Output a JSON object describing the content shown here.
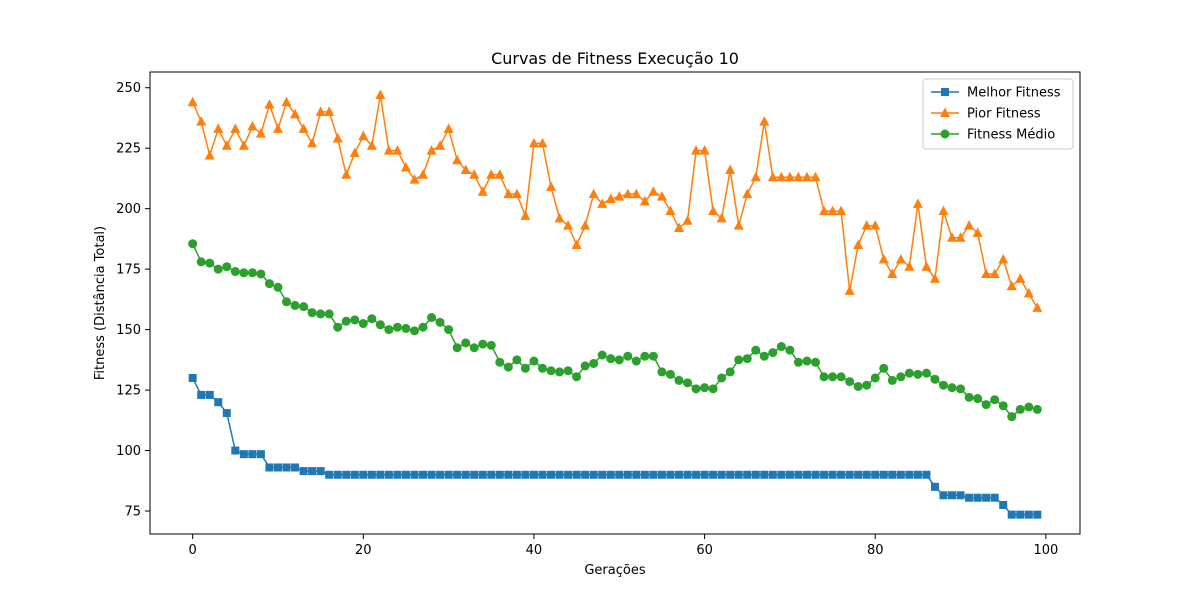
{
  "chart_data": {
    "type": "line",
    "title": "Curvas de Fitness Execução 10",
    "xlabel": "Gerações",
    "ylabel": "Fitness (Distância Total)",
    "xlim": [
      -5.0,
      104.0
    ],
    "ylim": [
      65.5,
      256.5
    ],
    "xticks": [
      0,
      20,
      40,
      60,
      80,
      100
    ],
    "yticks": [
      75,
      100,
      125,
      150,
      175,
      200,
      225,
      250
    ],
    "grid": false,
    "legend_position": "top-right",
    "x": [
      0,
      1,
      2,
      3,
      4,
      5,
      6,
      7,
      8,
      9,
      10,
      11,
      12,
      13,
      14,
      15,
      16,
      17,
      18,
      19,
      20,
      21,
      22,
      23,
      24,
      25,
      26,
      27,
      28,
      29,
      30,
      31,
      32,
      33,
      34,
      35,
      36,
      37,
      38,
      39,
      40,
      41,
      42,
      43,
      44,
      45,
      46,
      47,
      48,
      49,
      50,
      51,
      52,
      53,
      54,
      55,
      56,
      57,
      58,
      59,
      60,
      61,
      62,
      63,
      64,
      65,
      66,
      67,
      68,
      69,
      70,
      71,
      72,
      73,
      74,
      75,
      76,
      77,
      78,
      79,
      80,
      81,
      82,
      83,
      84,
      85,
      86,
      87,
      88,
      89,
      90,
      91,
      92,
      93,
      94,
      95,
      96,
      97,
      98,
      99
    ],
    "series": [
      {
        "name": "Melhor Fitness",
        "color": "#1f77b4",
        "marker": "square",
        "values": [
          130,
          123,
          123,
          120,
          115.5,
          100,
          98.5,
          98.5,
          98.5,
          93,
          93,
          93,
          93,
          91.5,
          91.5,
          91.5,
          90,
          90,
          90,
          90,
          90,
          90,
          90,
          90,
          90,
          90,
          90,
          90,
          90,
          90,
          90,
          90,
          90,
          90,
          90,
          90,
          90,
          90,
          90,
          90,
          90,
          90,
          90,
          90,
          90,
          90,
          90,
          90,
          90,
          90,
          90,
          90,
          90,
          90,
          90,
          90,
          90,
          90,
          90,
          90,
          90,
          90,
          90,
          90,
          90,
          90,
          90,
          90,
          90,
          90,
          90,
          90,
          90,
          90,
          90,
          90,
          90,
          90,
          90,
          90,
          90,
          90,
          90,
          90,
          90,
          90,
          90,
          85,
          81.5,
          81.5,
          81.5,
          80.5,
          80.5,
          80.5,
          80.5,
          77.5,
          73.5,
          73.5,
          73.5,
          73.5
        ]
      },
      {
        "name": "Pior Fitness",
        "color": "#ff7f0e",
        "marker": "triangle",
        "values": [
          244,
          236,
          222,
          233,
          226,
          233,
          226,
          234,
          231,
          243,
          233,
          244,
          239,
          233,
          227,
          240,
          240,
          229,
          214,
          223,
          230,
          226,
          247,
          224,
          224,
          217,
          212,
          214,
          224,
          226,
          233,
          220,
          216,
          214,
          207,
          214,
          214,
          206,
          206,
          197,
          227,
          227,
          209,
          196,
          193,
          185,
          193,
          206,
          202,
          204,
          205,
          206,
          206,
          203,
          207,
          205,
          199,
          192,
          195,
          224,
          224,
          199,
          196,
          216,
          193,
          206,
          213,
          236,
          213,
          213,
          213,
          213,
          213,
          213,
          199,
          199,
          199,
          166,
          185,
          193,
          193,
          179,
          173,
          179,
          176,
          202,
          176,
          171,
          199,
          188,
          188,
          193,
          190,
          173,
          173,
          179,
          168,
          171,
          165,
          159
        ]
      },
      {
        "name": "Fitness Médio",
        "color": "#2ca02c",
        "marker": "circle",
        "values": [
          185.5,
          178,
          177.5,
          175,
          176,
          174,
          173.5,
          173.5,
          173,
          169,
          167.5,
          161.5,
          160,
          159.5,
          157,
          156.5,
          156.5,
          151,
          153.5,
          154,
          152.5,
          154.5,
          152,
          150,
          151,
          150.5,
          149.5,
          151,
          155,
          153,
          150,
          142.5,
          144.5,
          142.5,
          144,
          143.5,
          136.5,
          134.5,
          137.5,
          134,
          137,
          134,
          133,
          132.5,
          133,
          130.5,
          135,
          136,
          139.5,
          138,
          137.5,
          139,
          137,
          139,
          139,
          132.5,
          131.5,
          129,
          128,
          125.5,
          126,
          125.5,
          130,
          132.5,
          137.5,
          138,
          141.5,
          139,
          140.5,
          143,
          141.5,
          136.5,
          137,
          136.5,
          130.5,
          130.5,
          130.5,
          128.5,
          126.5,
          127,
          130,
          134,
          129,
          130.5,
          132,
          131.5,
          132,
          129.5,
          127,
          126,
          125.5,
          122,
          121.5,
          119,
          121,
          118.5,
          114,
          117,
          118,
          117
        ]
      }
    ]
  }
}
